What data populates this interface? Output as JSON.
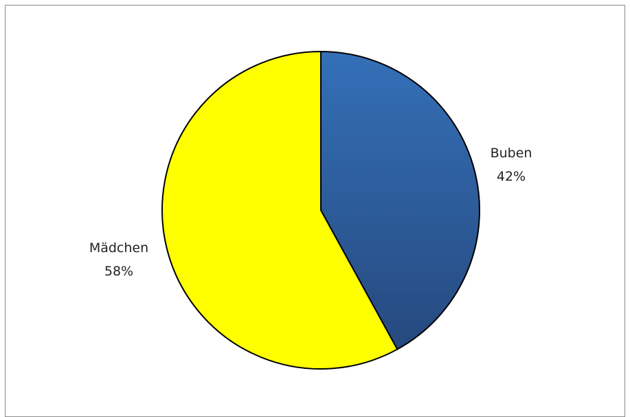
{
  "chart_data": {
    "type": "pie",
    "title": "",
    "slices": [
      {
        "label": "Buben",
        "percent_label": "42%",
        "value": 42,
        "color": "#2f62a4"
      },
      {
        "label": "Mädchen",
        "percent_label": "58%",
        "value": 58,
        "color": "#ffff00"
      }
    ],
    "legend": "none",
    "start_angle": "12 o'clock",
    "direction": "clockwise"
  }
}
